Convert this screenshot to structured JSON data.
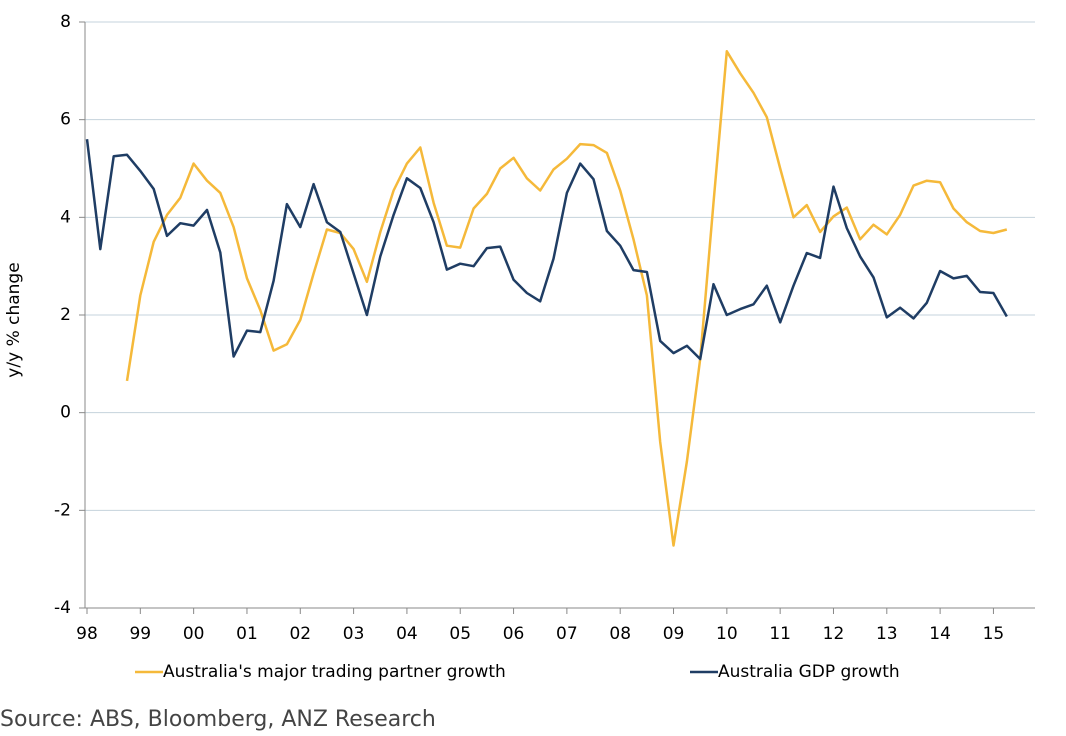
{
  "chart_data": {
    "type": "line",
    "ylabel": "y/y % change",
    "source": "Source: ABS, Bloomberg, ANZ Research",
    "categories": [
      "98",
      null,
      null,
      null,
      "99",
      null,
      null,
      null,
      "00",
      null,
      null,
      null,
      "01",
      null,
      null,
      null,
      "02",
      null,
      null,
      null,
      "03",
      null,
      null,
      null,
      "04",
      null,
      null,
      null,
      "05",
      null,
      null,
      null,
      "06",
      null,
      null,
      null,
      "07",
      null,
      null,
      null,
      "08",
      null,
      null,
      null,
      "09",
      null,
      null,
      null,
      "10",
      null,
      null,
      null,
      "11",
      null,
      null,
      null,
      "12",
      null,
      null,
      null,
      "13",
      null,
      null,
      null,
      "14",
      null,
      null,
      null,
      "15",
      null
    ],
    "series": [
      {
        "name": "Australia's major trading partner growth",
        "color": "#f5b93a",
        "values": [
          null,
          null,
          null,
          0.65,
          2.4,
          3.5,
          4.05,
          4.4,
          5.1,
          4.75,
          4.5,
          3.8,
          2.75,
          2.1,
          1.27,
          1.4,
          1.9,
          2.85,
          3.75,
          3.68,
          3.35,
          2.68,
          3.7,
          4.55,
          5.1,
          5.43,
          4.3,
          3.42,
          3.38,
          4.18,
          4.48,
          5.0,
          5.22,
          4.8,
          4.55,
          4.98,
          5.2,
          5.5,
          5.48,
          5.32,
          4.55,
          3.55,
          2.4,
          -0.6,
          -2.72,
          -1.0,
          1.1,
          4.3,
          7.4,
          6.95,
          6.55,
          6.05,
          5.0,
          4.0,
          4.25,
          3.7,
          4.02,
          4.2,
          3.55,
          3.85,
          3.65,
          4.05,
          4.65,
          4.75,
          4.72,
          4.18,
          3.9,
          3.72,
          3.68,
          3.75
        ]
      },
      {
        "name": "Australia GDP growth",
        "color": "#1f3d64",
        "values": [
          5.6,
          3.35,
          5.25,
          5.28,
          4.95,
          4.58,
          3.62,
          3.88,
          3.83,
          4.15,
          3.28,
          1.15,
          1.68,
          1.65,
          2.7,
          4.27,
          3.8,
          4.68,
          3.9,
          3.7,
          2.85,
          2.0,
          3.2,
          4.05,
          4.8,
          4.6,
          3.9,
          2.93,
          3.05,
          3.0,
          3.37,
          3.4,
          2.72,
          2.45,
          2.28,
          3.15,
          4.5,
          5.1,
          4.78,
          3.72,
          3.42,
          2.92,
          2.88,
          1.47,
          1.22,
          1.37,
          1.1,
          2.63,
          2.0,
          2.12,
          2.22,
          2.6,
          1.85,
          2.6,
          3.27,
          3.17,
          4.63,
          3.78,
          3.2,
          2.77,
          1.95,
          2.15,
          1.93,
          2.25,
          2.9,
          2.75,
          2.8,
          2.47,
          2.45,
          1.97
        ]
      }
    ],
    "ylim": [
      -4,
      8
    ],
    "yticks": [
      -4,
      -2,
      0,
      2,
      4,
      6,
      8
    ],
    "grid": true,
    "legend": "bottom"
  }
}
